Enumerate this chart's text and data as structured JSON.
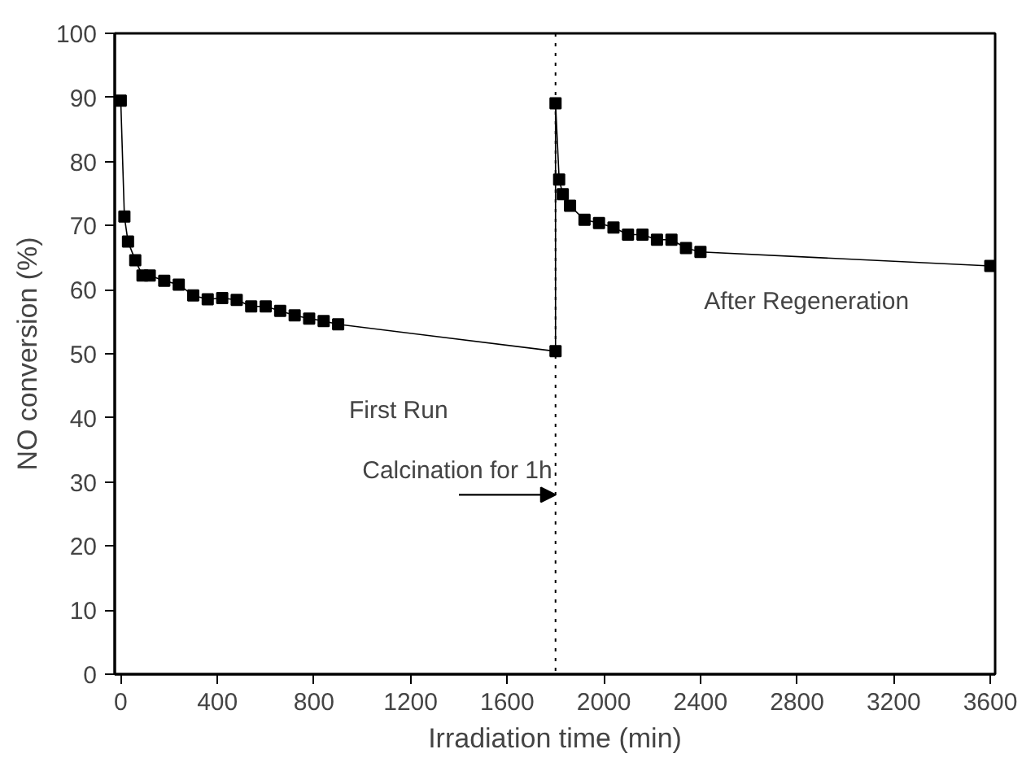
{
  "chart_data": {
    "type": "line",
    "xlabel": "Irradiation time (min)",
    "ylabel": "NO conversion (%)",
    "x": [
      0,
      15,
      30,
      60,
      90,
      120,
      180,
      240,
      300,
      360,
      420,
      480,
      540,
      600,
      660,
      720,
      780,
      840,
      900,
      1800,
      1800,
      1815,
      1830,
      1860,
      1920,
      1980,
      2040,
      2100,
      2160,
      2220,
      2280,
      2340,
      2400,
      3600
    ],
    "series": [
      {
        "color": "#000000",
        "values": [
          89.5,
          71.4,
          67.5,
          64.6,
          62.2,
          62.2,
          61.4,
          60.8,
          59.1,
          58.5,
          58.7,
          58.4,
          57.4,
          57.4,
          56.7,
          56.0,
          55.5,
          55.1,
          54.6,
          50.4,
          89.1,
          77.2,
          74.9,
          73.1,
          70.9,
          70.4,
          69.7,
          68.6,
          68.6,
          67.8,
          67.8,
          66.5,
          65.9,
          63.7
        ]
      }
    ],
    "marker": "square",
    "line_style": "solid",
    "grid": false,
    "xlim": [
      -25,
      3620
    ],
    "ylim": [
      0,
      100
    ],
    "xticks": [
      0,
      400,
      800,
      1200,
      1600,
      2000,
      2400,
      2800,
      3200,
      3600
    ],
    "yticks": [
      0,
      10,
      20,
      30,
      40,
      50,
      60,
      70,
      80,
      90,
      100
    ],
    "ref_lines": [
      {
        "axis": "x",
        "value": 1800,
        "line_style": "dotted",
        "color": "#000000"
      }
    ],
    "annotations": [
      "First Run",
      "After Regeneration",
      {
        "text": "Calcination for 1h",
        "x": 1800,
        "y": 28
      }
    ]
  }
}
